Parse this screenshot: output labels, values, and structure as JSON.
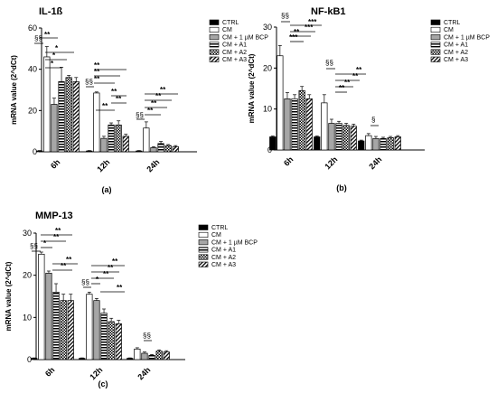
{
  "series_styles": [
    {
      "name": "CTRL",
      "fill": "#000000",
      "pattern": "solid"
    },
    {
      "name": "CM",
      "fill": "#ffffff",
      "pattern": "solid"
    },
    {
      "name": "CM + 1 µM BCP",
      "fill": "#a6a6a6",
      "pattern": "solid"
    },
    {
      "name": "CM + A1",
      "fill": "#ffffff",
      "pattern": "hstripe"
    },
    {
      "name": "CM + A2",
      "fill": "#ffffff",
      "pattern": "check"
    },
    {
      "name": "CM + A3",
      "fill": "#ffffff",
      "pattern": "diag"
    }
  ],
  "chart_data": [
    {
      "type": "bar",
      "title": "IL-1ß",
      "ylabel": "mRNA value (2^dCt)",
      "ylim": [
        0,
        60
      ],
      "yticks": [
        0,
        20,
        40,
        60
      ],
      "categories": [
        "6h",
        "12h",
        "24h"
      ],
      "panel_label": "(a)",
      "legend_position": "right",
      "series": [
        {
          "name": "CTRL",
          "values": [
            0.4,
            0.4,
            0.4
          ],
          "errors": [
            0.2,
            0.2,
            0.2
          ]
        },
        {
          "name": "CM",
          "values": [
            46,
            28.5,
            11.5
          ],
          "errors": [
            5,
            0.5,
            3
          ]
        },
        {
          "name": "CM + 1 µM BCP",
          "values": [
            23,
            6.5,
            2
          ],
          "errors": [
            3,
            1,
            0.5
          ]
        },
        {
          "name": "CM + A1",
          "values": [
            34,
            13,
            4
          ],
          "errors": [
            7,
            1,
            1
          ]
        },
        {
          "name": "CM + A2",
          "values": [
            36,
            13,
            3
          ],
          "errors": [
            1,
            2,
            0.5
          ]
        },
        {
          "name": "CM + A3",
          "values": [
            34,
            7.5,
            2.5
          ],
          "errors": [
            2,
            1,
            0.5
          ]
        }
      ],
      "annotations": [
        {
          "text": "§§",
          "category": "6h"
        },
        {
          "text": "**",
          "category": "6h"
        },
        {
          "text": "*",
          "category": "6h"
        },
        {
          "text": "*",
          "category": "6h"
        },
        {
          "text": "*",
          "category": "6h"
        },
        {
          "text": "§§",
          "category": "12h"
        },
        {
          "text": "**",
          "category": "12h"
        },
        {
          "text": "**",
          "category": "12h"
        },
        {
          "text": "**",
          "category": "12h"
        },
        {
          "text": "**",
          "category": "12h"
        },
        {
          "text": "**",
          "category": "12h"
        },
        {
          "text": "**",
          "category": "12h"
        },
        {
          "text": "§§",
          "category": "24h"
        },
        {
          "text": "**",
          "category": "24h"
        },
        {
          "text": "**",
          "category": "24h"
        },
        {
          "text": "**",
          "category": "24h"
        },
        {
          "text": "**",
          "category": "24h"
        }
      ]
    },
    {
      "type": "bar",
      "title": "NF-kB1",
      "ylabel": "mRNA value (2^dCt)",
      "ylim": [
        0,
        30
      ],
      "yticks": [
        0,
        10,
        20,
        30
      ],
      "categories": [
        "6h",
        "12h",
        "24h"
      ],
      "panel_label": "(b)",
      "legend_position": "right",
      "series": [
        {
          "name": "CTRL",
          "values": [
            3.2,
            3.2,
            2.2
          ],
          "errors": [
            0.2,
            0.2,
            0.2
          ]
        },
        {
          "name": "CM",
          "values": [
            23,
            11.5,
            3.5
          ],
          "errors": [
            2.5,
            2,
            0.5
          ]
        },
        {
          "name": "CM + 1 µM BCP",
          "values": [
            12.5,
            6.5,
            2.8
          ],
          "errors": [
            1.5,
            1,
            0.5
          ]
        },
        {
          "name": "CM + A1",
          "values": [
            12.5,
            6.5,
            2.8
          ],
          "errors": [
            1,
            0.5,
            0.3
          ]
        },
        {
          "name": "CM + A2",
          "values": [
            14.5,
            6,
            3
          ],
          "errors": [
            1,
            0.5,
            0.3
          ]
        },
        {
          "name": "CM + A3",
          "values": [
            12.5,
            5.8,
            3.2
          ],
          "errors": [
            1,
            0.5,
            0.3
          ]
        }
      ],
      "annotations": [
        {
          "text": "§§",
          "category": "6h"
        },
        {
          "text": "***",
          "category": "6h"
        },
        {
          "text": "***",
          "category": "6h"
        },
        {
          "text": "**",
          "category": "6h"
        },
        {
          "text": "***",
          "category": "6h"
        },
        {
          "text": "§§",
          "category": "12h"
        },
        {
          "text": "**",
          "category": "12h"
        },
        {
          "text": "**",
          "category": "12h"
        },
        {
          "text": "**",
          "category": "12h"
        },
        {
          "text": "**",
          "category": "12h"
        },
        {
          "text": "§",
          "category": "24h"
        }
      ]
    },
    {
      "type": "bar",
      "title": "MMP-13",
      "ylabel": "mRNA value (2^dCt)",
      "ylim": [
        0,
        30
      ],
      "yticks": [
        0,
        10,
        20,
        30
      ],
      "categories": [
        "6h",
        "12h",
        "24h"
      ],
      "panel_label": "(c)",
      "legend_position": "right",
      "series": [
        {
          "name": "CTRL",
          "values": [
            0.3,
            0.3,
            0.3
          ],
          "errors": [
            0.1,
            0.1,
            0.1
          ]
        },
        {
          "name": "CM",
          "values": [
            25,
            15.5,
            2.5
          ],
          "errors": [
            0.5,
            0.5,
            0.3
          ]
        },
        {
          "name": "CM + 1 µM BCP",
          "values": [
            20.5,
            14,
            1.5
          ],
          "errors": [
            0.5,
            0.5,
            0.3
          ]
        },
        {
          "name": "CM + A1",
          "values": [
            16,
            11,
            1
          ],
          "errors": [
            2,
            1,
            0.2
          ]
        },
        {
          "name": "CM + A2",
          "values": [
            14,
            9,
            2
          ],
          "errors": [
            1.5,
            0.8,
            0.3
          ]
        },
        {
          "name": "CM + A3",
          "values": [
            14,
            8.5,
            1.8
          ],
          "errors": [
            1.5,
            0.8,
            0.3
          ]
        }
      ],
      "annotations": [
        {
          "text": "§§",
          "category": "6h"
        },
        {
          "text": "*",
          "category": "6h"
        },
        {
          "text": "**",
          "category": "6h"
        },
        {
          "text": "**",
          "category": "6h"
        },
        {
          "text": "**",
          "category": "6h"
        },
        {
          "text": "**",
          "category": "6h"
        },
        {
          "text": "§§",
          "category": "12h"
        },
        {
          "text": "*",
          "category": "12h"
        },
        {
          "text": "**",
          "category": "12h"
        },
        {
          "text": "**",
          "category": "12h"
        },
        {
          "text": "**",
          "category": "12h"
        },
        {
          "text": "**",
          "category": "12h"
        },
        {
          "text": "§§",
          "category": "24h"
        }
      ]
    }
  ]
}
